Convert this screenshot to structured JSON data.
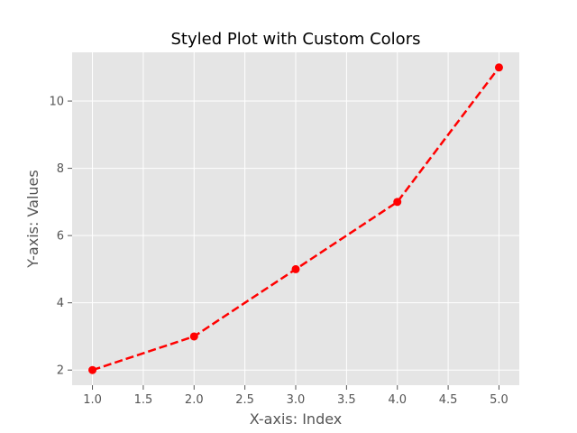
{
  "chart_data": {
    "type": "line",
    "title": "Styled Plot with Custom Colors",
    "xlabel": "X-axis: Index",
    "ylabel": "Y-axis: Values",
    "x": [
      1,
      2,
      3,
      4,
      5
    ],
    "series": [
      {
        "values": [
          2,
          3,
          5,
          7,
          11
        ],
        "color": "#ff0000",
        "line_style": "dashed",
        "marker": "circle"
      }
    ],
    "xlim": [
      0.8,
      5.2
    ],
    "ylim": [
      1.55,
      11.45
    ],
    "xticks": [
      1.0,
      1.5,
      2.0,
      2.5,
      3.0,
      3.5,
      4.0,
      4.5,
      5.0
    ],
    "yticks": [
      2,
      4,
      6,
      8,
      10
    ],
    "grid": true,
    "style": "ggplot",
    "colors": {
      "plot_background": "#e5e5e5",
      "grid": "#ffffff",
      "text": "#555555",
      "title": "#000000"
    }
  }
}
